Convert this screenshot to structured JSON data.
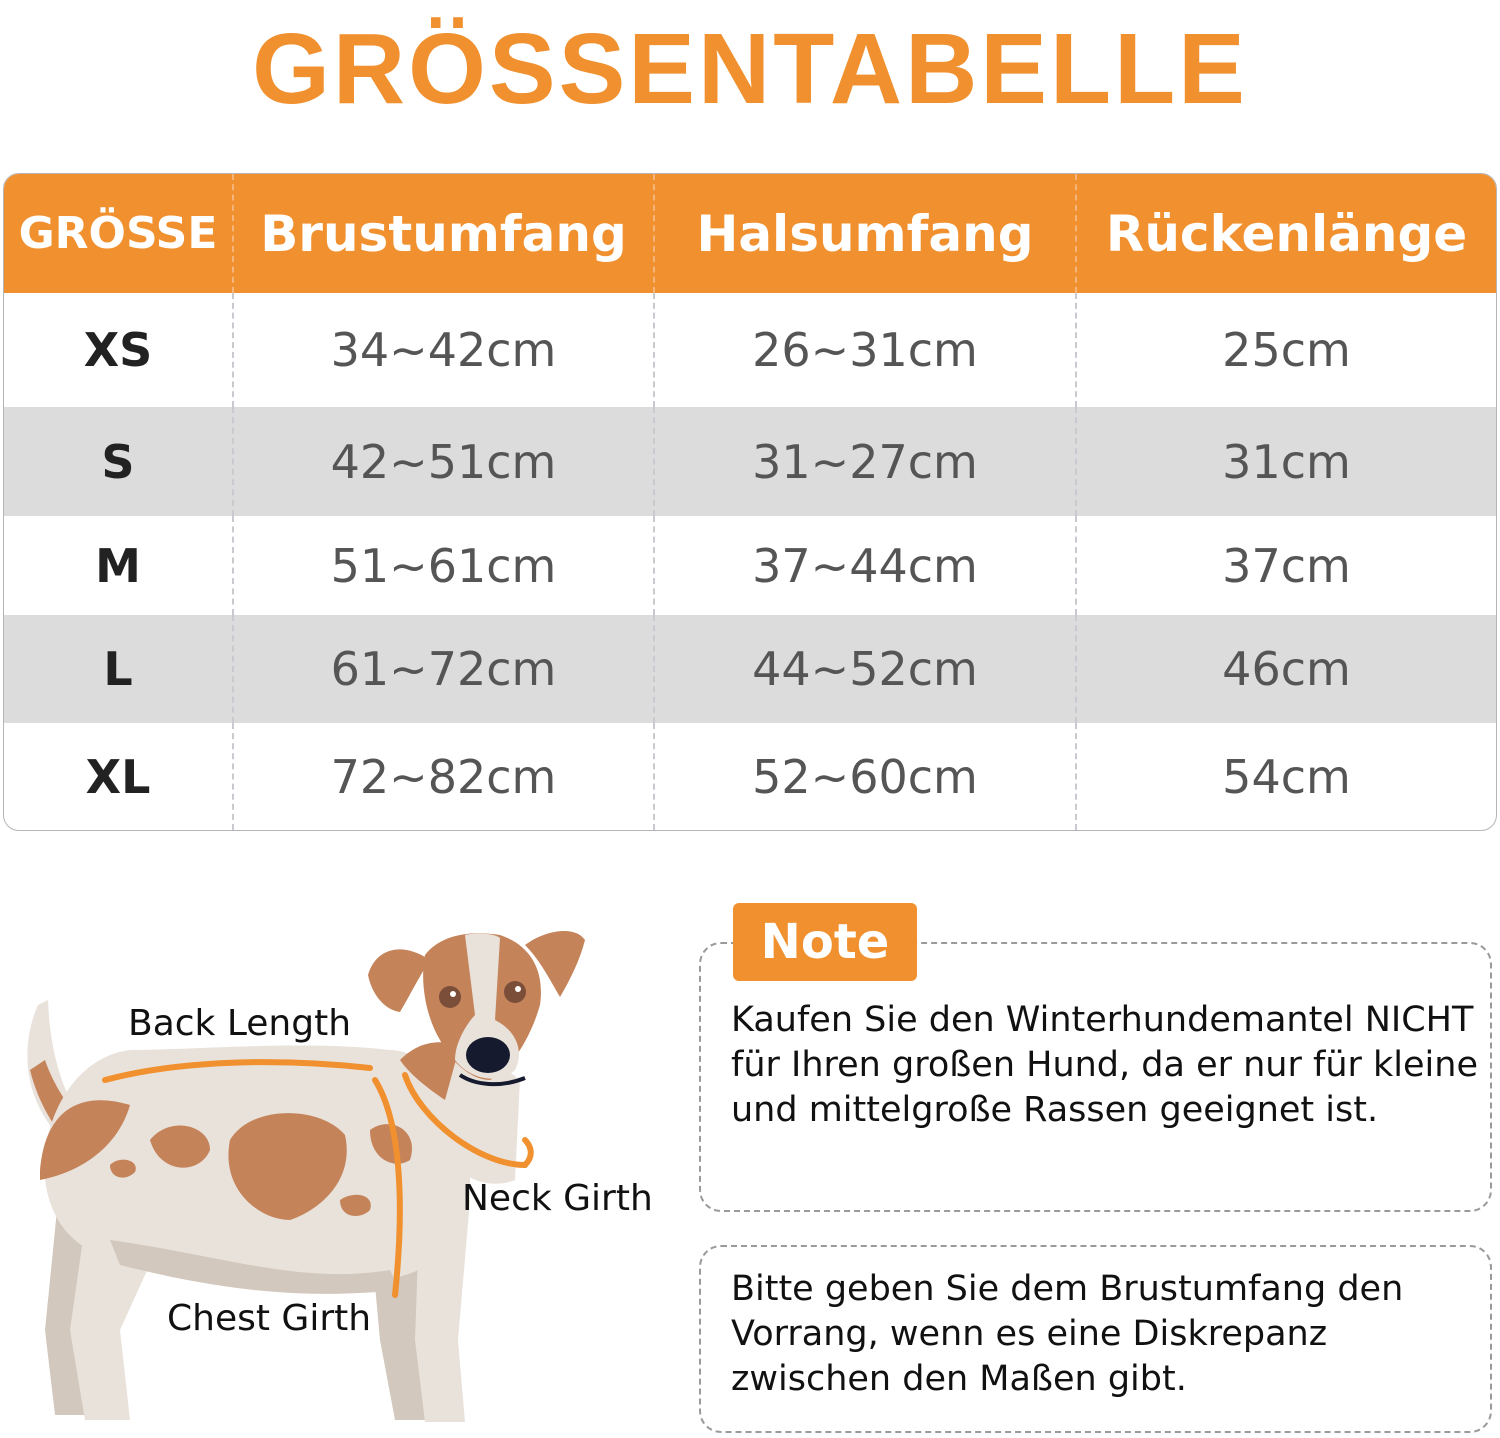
{
  "title": "GRÖSSENTABELLE",
  "colors": {
    "accent": "#F0902E",
    "row_alt": "#dcdcdc"
  },
  "table": {
    "headers": [
      "GRÖSSE",
      "Brustumfang",
      "Halsumfang",
      "Rückenlänge"
    ],
    "rows": [
      [
        "XS",
        "34~42cm",
        "26~31cm",
        "25cm"
      ],
      [
        "S",
        "42~51cm",
        "31~27cm",
        "31cm"
      ],
      [
        "M",
        "51~61cm",
        "37~44cm",
        "37cm"
      ],
      [
        "L",
        "61~72cm",
        "44~52cm",
        "46cm"
      ],
      [
        "XL",
        "72~82cm",
        "52~60cm",
        "54cm"
      ]
    ]
  },
  "diagram": {
    "back_length": "Back Length",
    "neck_girth": "Neck Girth",
    "chest_girth": "Chest Girth"
  },
  "note": {
    "badge": "Note",
    "text1": "Kaufen Sie den Winterhundemantel NICHT für Ihren großen Hund, da er nur für kleine und mittelgroße Rassen geeignet ist.",
    "text2": "Bitte geben Sie dem Brustumfang den Vorrang, wenn es eine Diskrepanz zwischen den Maßen gibt."
  }
}
